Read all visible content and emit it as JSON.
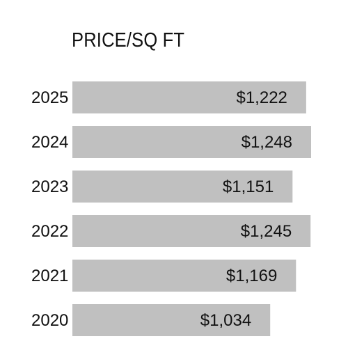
{
  "chart_data": {
    "type": "bar",
    "orientation": "horizontal",
    "title": "PRICE/SQ FT",
    "categories": [
      "2025",
      "2024",
      "2023",
      "2022",
      "2021",
      "2020"
    ],
    "values": [
      1222,
      1248,
      1151,
      1245,
      1169,
      1034
    ],
    "value_labels": [
      "$1,222",
      "$1,248",
      "$1,151",
      "$1,245",
      "$1,169",
      "$1,034"
    ],
    "xlim": [
      0,
      1248
    ],
    "grid": false,
    "legend": "none",
    "colors": {
      "bar": "#c0c0c0",
      "text": "#111111",
      "background": "#ffffff"
    }
  }
}
